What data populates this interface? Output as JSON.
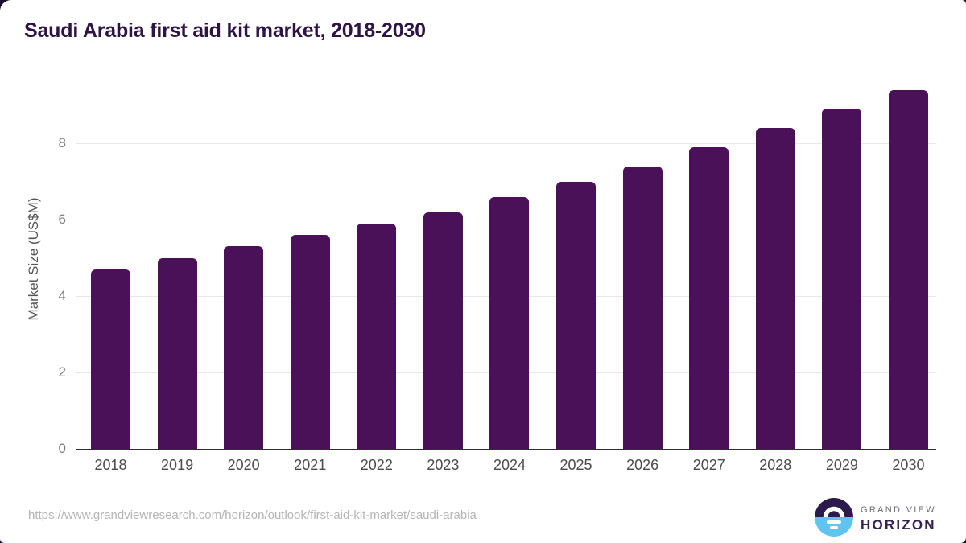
{
  "title": "Saudi Arabia first aid kit market, 2018-2030",
  "y_axis": {
    "title": "Market Size (US$M)",
    "ticks": [
      0,
      2,
      4,
      6,
      8
    ]
  },
  "chart_data": {
    "type": "bar",
    "title": "Saudi Arabia first aid kit market, 2018-2030",
    "categories": [
      "2018",
      "2019",
      "2020",
      "2021",
      "2022",
      "2023",
      "2024",
      "2025",
      "2026",
      "2027",
      "2028",
      "2029",
      "2030"
    ],
    "values": [
      4.7,
      5.0,
      5.3,
      5.6,
      5.9,
      6.2,
      6.6,
      7.0,
      7.4,
      7.9,
      8.4,
      8.9,
      9.4
    ],
    "xlabel": "",
    "ylabel": "Market Size (US$M)",
    "ylim": [
      0,
      9.7
    ],
    "yticks": [
      0,
      2,
      4,
      6,
      8
    ],
    "grid": true,
    "legend": false,
    "bar_color": "#4a1158"
  },
  "colors": {
    "title": "#2e1345",
    "bar": "#4a1158",
    "gridline": "#e8e8e8",
    "axis_line": "#2e2e2e",
    "backdrop": "#1b0e30",
    "logo_purple": "#2d1a4c",
    "logo_blue": "#5fc4ef"
  },
  "footer": {
    "source_url": "https://www.grandviewresearch.com/horizon/outlook/first-aid-kit-market/saudi-arabia",
    "logo": {
      "line1": "GRAND VIEW",
      "line2": "HORIZON"
    }
  }
}
